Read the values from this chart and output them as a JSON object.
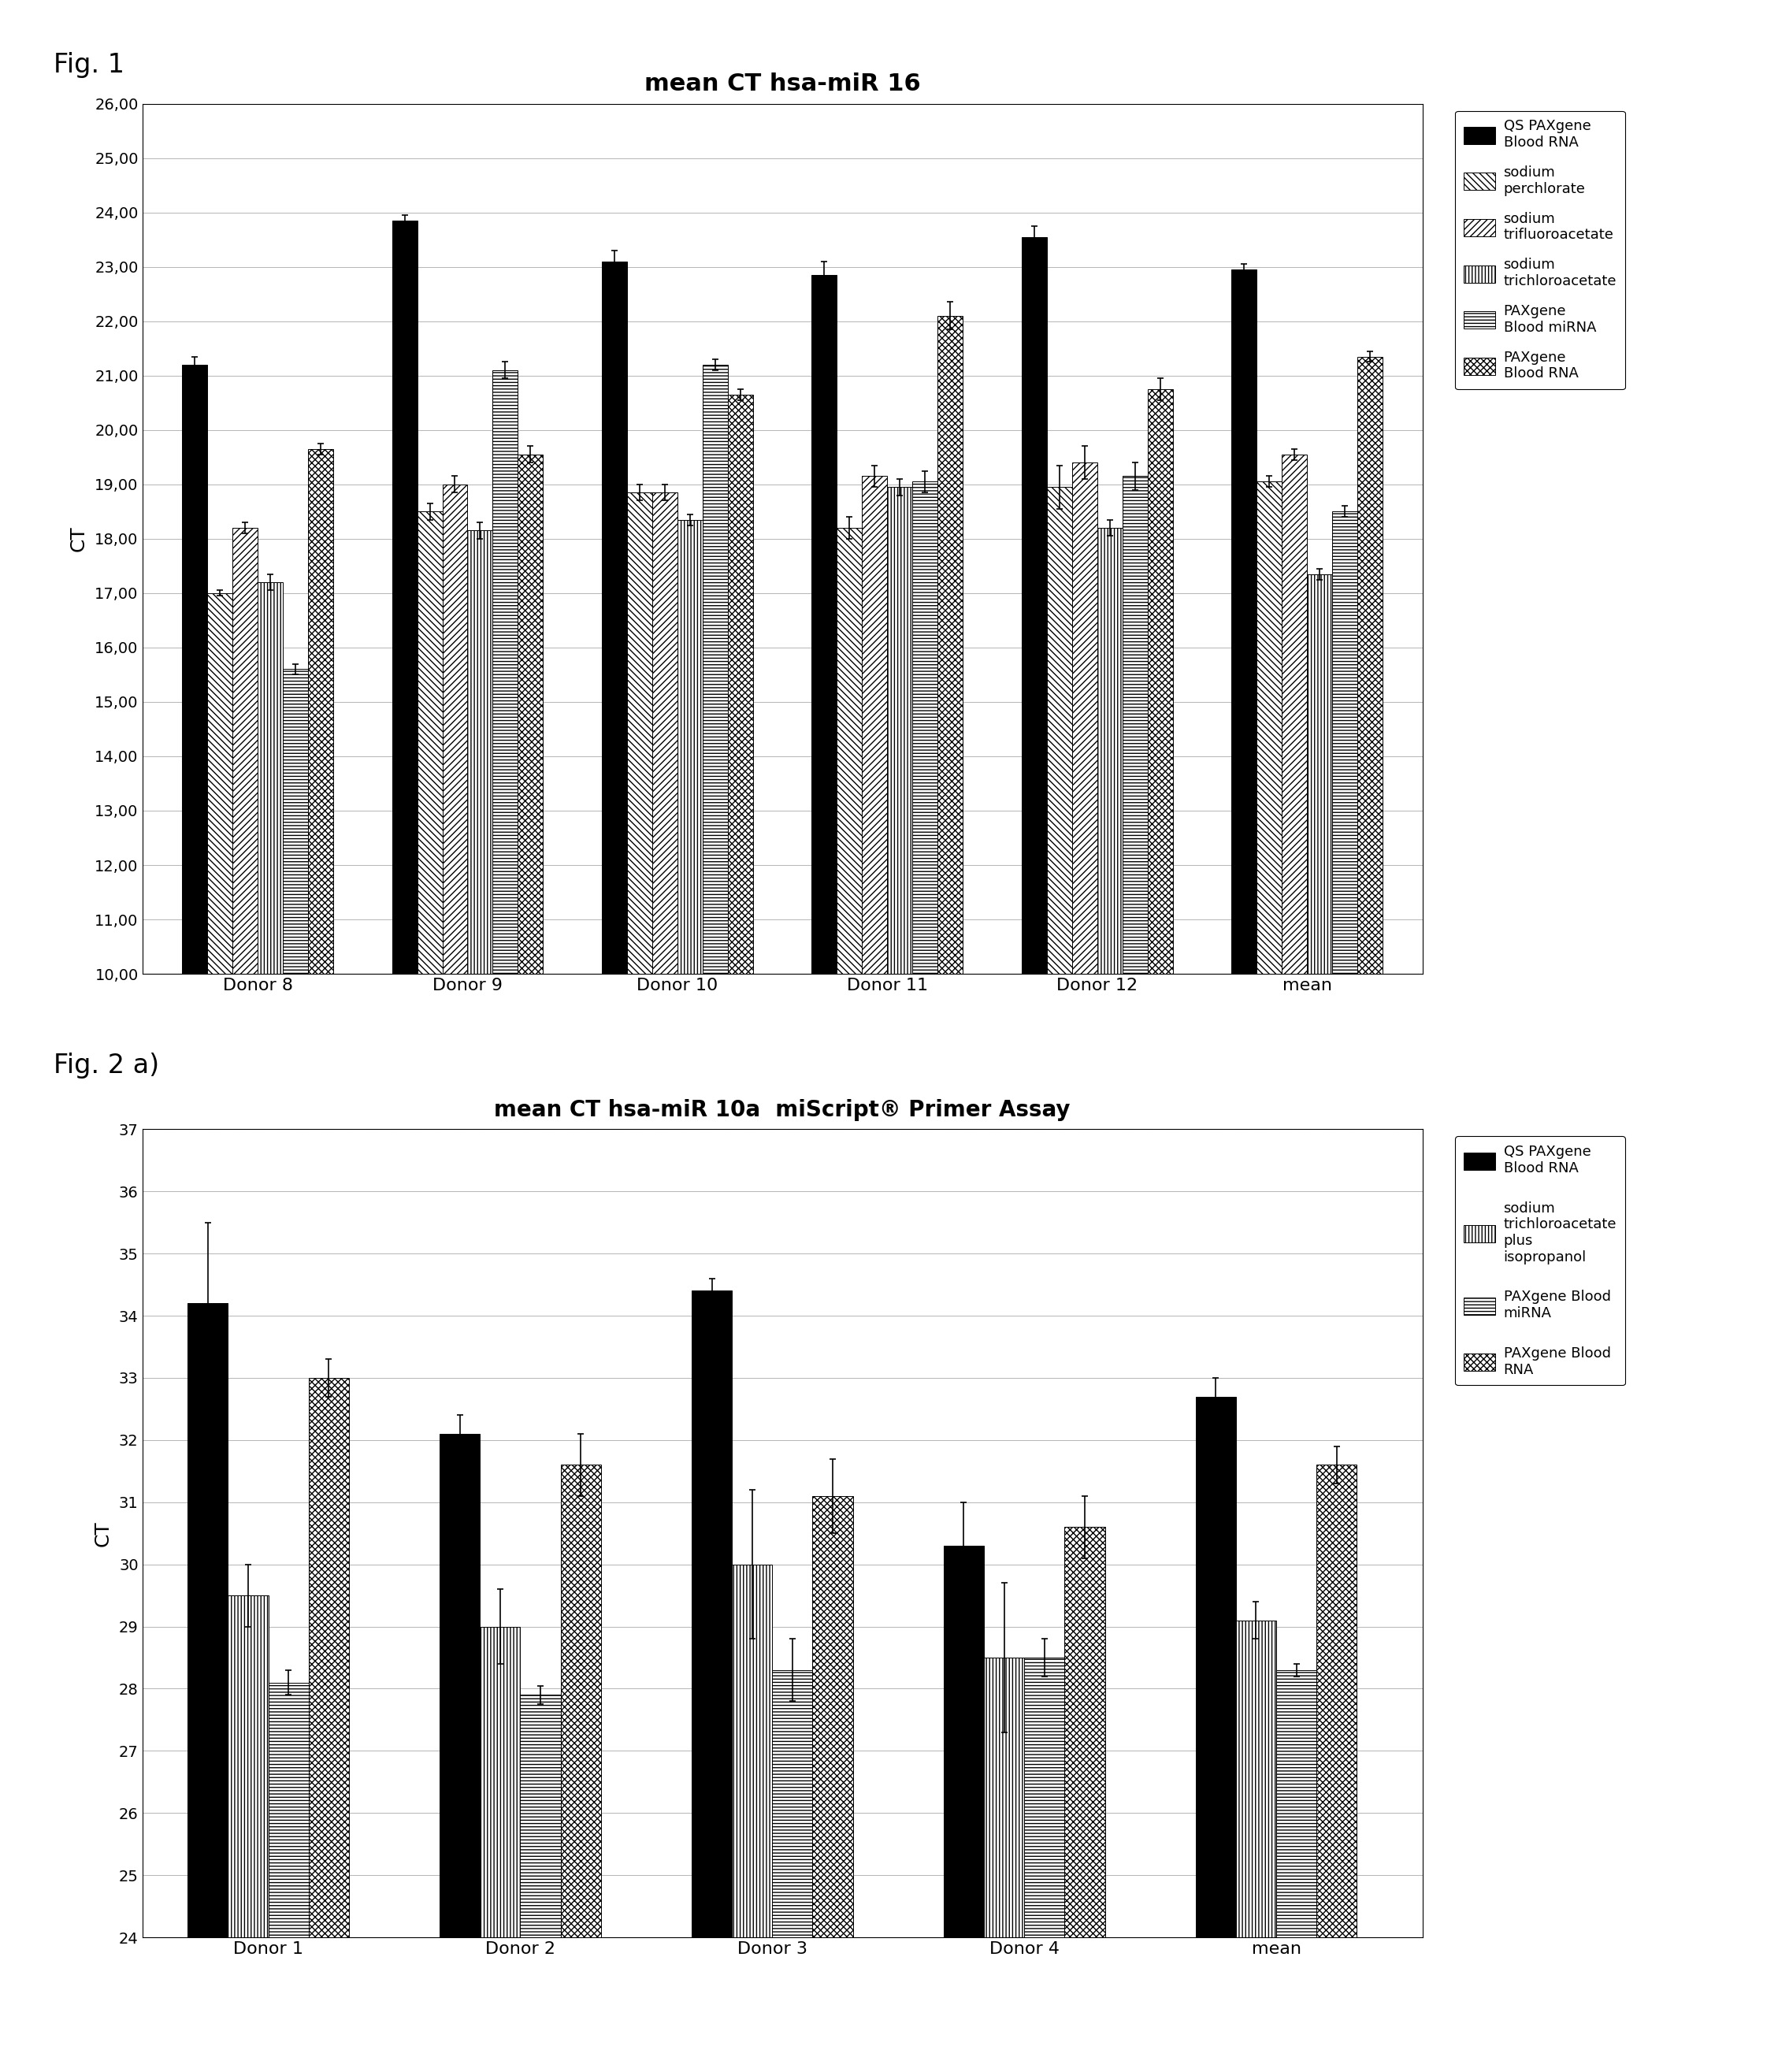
{
  "fig1": {
    "title": "mean CT hsa-miR 16",
    "xlabel": "",
    "ylabel": "CT",
    "ylim": [
      10.0,
      26.0
    ],
    "yticks": [
      10.0,
      11.0,
      12.0,
      13.0,
      14.0,
      15.0,
      16.0,
      17.0,
      18.0,
      19.0,
      20.0,
      21.0,
      22.0,
      23.0,
      24.0,
      25.0,
      26.0
    ],
    "categories": [
      "Donor 8",
      "Donor 9",
      "Donor 10",
      "Donor 11",
      "Donor 12",
      "mean"
    ],
    "series": [
      {
        "label": "QS PAXgene\nBlood RNA",
        "facecolor": "#000000",
        "edgecolor": "#000000",
        "hatch": "",
        "values": [
          21.2,
          23.85,
          23.1,
          22.85,
          23.55,
          22.95
        ],
        "errors": [
          0.15,
          0.1,
          0.2,
          0.25,
          0.2,
          0.1
        ]
      },
      {
        "label": "sodium\nperchlorate",
        "facecolor": "#ffffff",
        "edgecolor": "#000000",
        "hatch": "\\\\\\\\",
        "values": [
          17.0,
          18.5,
          18.85,
          18.2,
          18.95,
          19.05
        ],
        "errors": [
          0.05,
          0.15,
          0.15,
          0.2,
          0.4,
          0.1
        ]
      },
      {
        "label": "sodium\ntrifluoroacetate",
        "facecolor": "#ffffff",
        "edgecolor": "#000000",
        "hatch": "////",
        "values": [
          18.2,
          19.0,
          18.85,
          19.15,
          19.4,
          19.55
        ],
        "errors": [
          0.1,
          0.15,
          0.15,
          0.2,
          0.3,
          0.1
        ]
      },
      {
        "label": "sodium\ntrichloroacetate",
        "facecolor": "#ffffff",
        "edgecolor": "#000000",
        "hatch": "||||",
        "values": [
          17.2,
          18.15,
          18.35,
          18.95,
          18.2,
          17.35
        ],
        "errors": [
          0.15,
          0.15,
          0.1,
          0.15,
          0.15,
          0.1
        ]
      },
      {
        "label": "PAXgene\nBlood miRNA",
        "facecolor": "#ffffff",
        "edgecolor": "#000000",
        "hatch": "----",
        "values": [
          15.6,
          21.1,
          21.2,
          19.05,
          19.15,
          18.5
        ],
        "errors": [
          0.1,
          0.15,
          0.1,
          0.2,
          0.25,
          0.1
        ]
      },
      {
        "label": "PAXgene\nBlood RNA",
        "facecolor": "#ffffff",
        "edgecolor": "#000000",
        "hatch": "xxxx",
        "values": [
          19.65,
          19.55,
          20.65,
          22.1,
          20.75,
          21.35
        ],
        "errors": [
          0.1,
          0.15,
          0.1,
          0.25,
          0.2,
          0.1
        ]
      }
    ]
  },
  "fig2": {
    "title": "mean CT hsa-miR 10a  miScript® Primer Assay",
    "xlabel": "",
    "ylabel": "CT",
    "ylim": [
      24.0,
      37.0
    ],
    "yticks": [
      24,
      25,
      26,
      27,
      28,
      29,
      30,
      31,
      32,
      33,
      34,
      35,
      36,
      37
    ],
    "categories": [
      "Donor 1",
      "Donor 2",
      "Donor 3",
      "Donor 4",
      "mean"
    ],
    "series": [
      {
        "label": "QS PAXgene\nBlood RNA",
        "facecolor": "#000000",
        "edgecolor": "#000000",
        "hatch": "",
        "values": [
          34.2,
          32.1,
          34.4,
          30.3,
          32.7
        ],
        "errors": [
          1.3,
          0.3,
          0.2,
          0.7,
          0.3
        ]
      },
      {
        "label": "sodium\ntrichloroacetate\nplus\nisopropanol",
        "facecolor": "#ffffff",
        "edgecolor": "#000000",
        "hatch": "||||",
        "values": [
          29.5,
          29.0,
          30.0,
          28.5,
          29.1
        ],
        "errors": [
          0.5,
          0.6,
          1.2,
          1.2,
          0.3
        ]
      },
      {
        "label": "PAXgene Blood\nmiRNA",
        "facecolor": "#ffffff",
        "edgecolor": "#000000",
        "hatch": "----",
        "values": [
          28.1,
          27.9,
          28.3,
          28.5,
          28.3
        ],
        "errors": [
          0.2,
          0.15,
          0.5,
          0.3,
          0.1
        ]
      },
      {
        "label": "PAXgene Blood\nRNA",
        "facecolor": "#ffffff",
        "edgecolor": "#000000",
        "hatch": "xxxx",
        "values": [
          33.0,
          31.6,
          31.1,
          30.6,
          31.6
        ],
        "errors": [
          0.3,
          0.5,
          0.6,
          0.5,
          0.3
        ]
      }
    ]
  },
  "background_color": "#ffffff",
  "fig1_label": "Fig. 1",
  "fig2_label": "Fig. 2 a)"
}
